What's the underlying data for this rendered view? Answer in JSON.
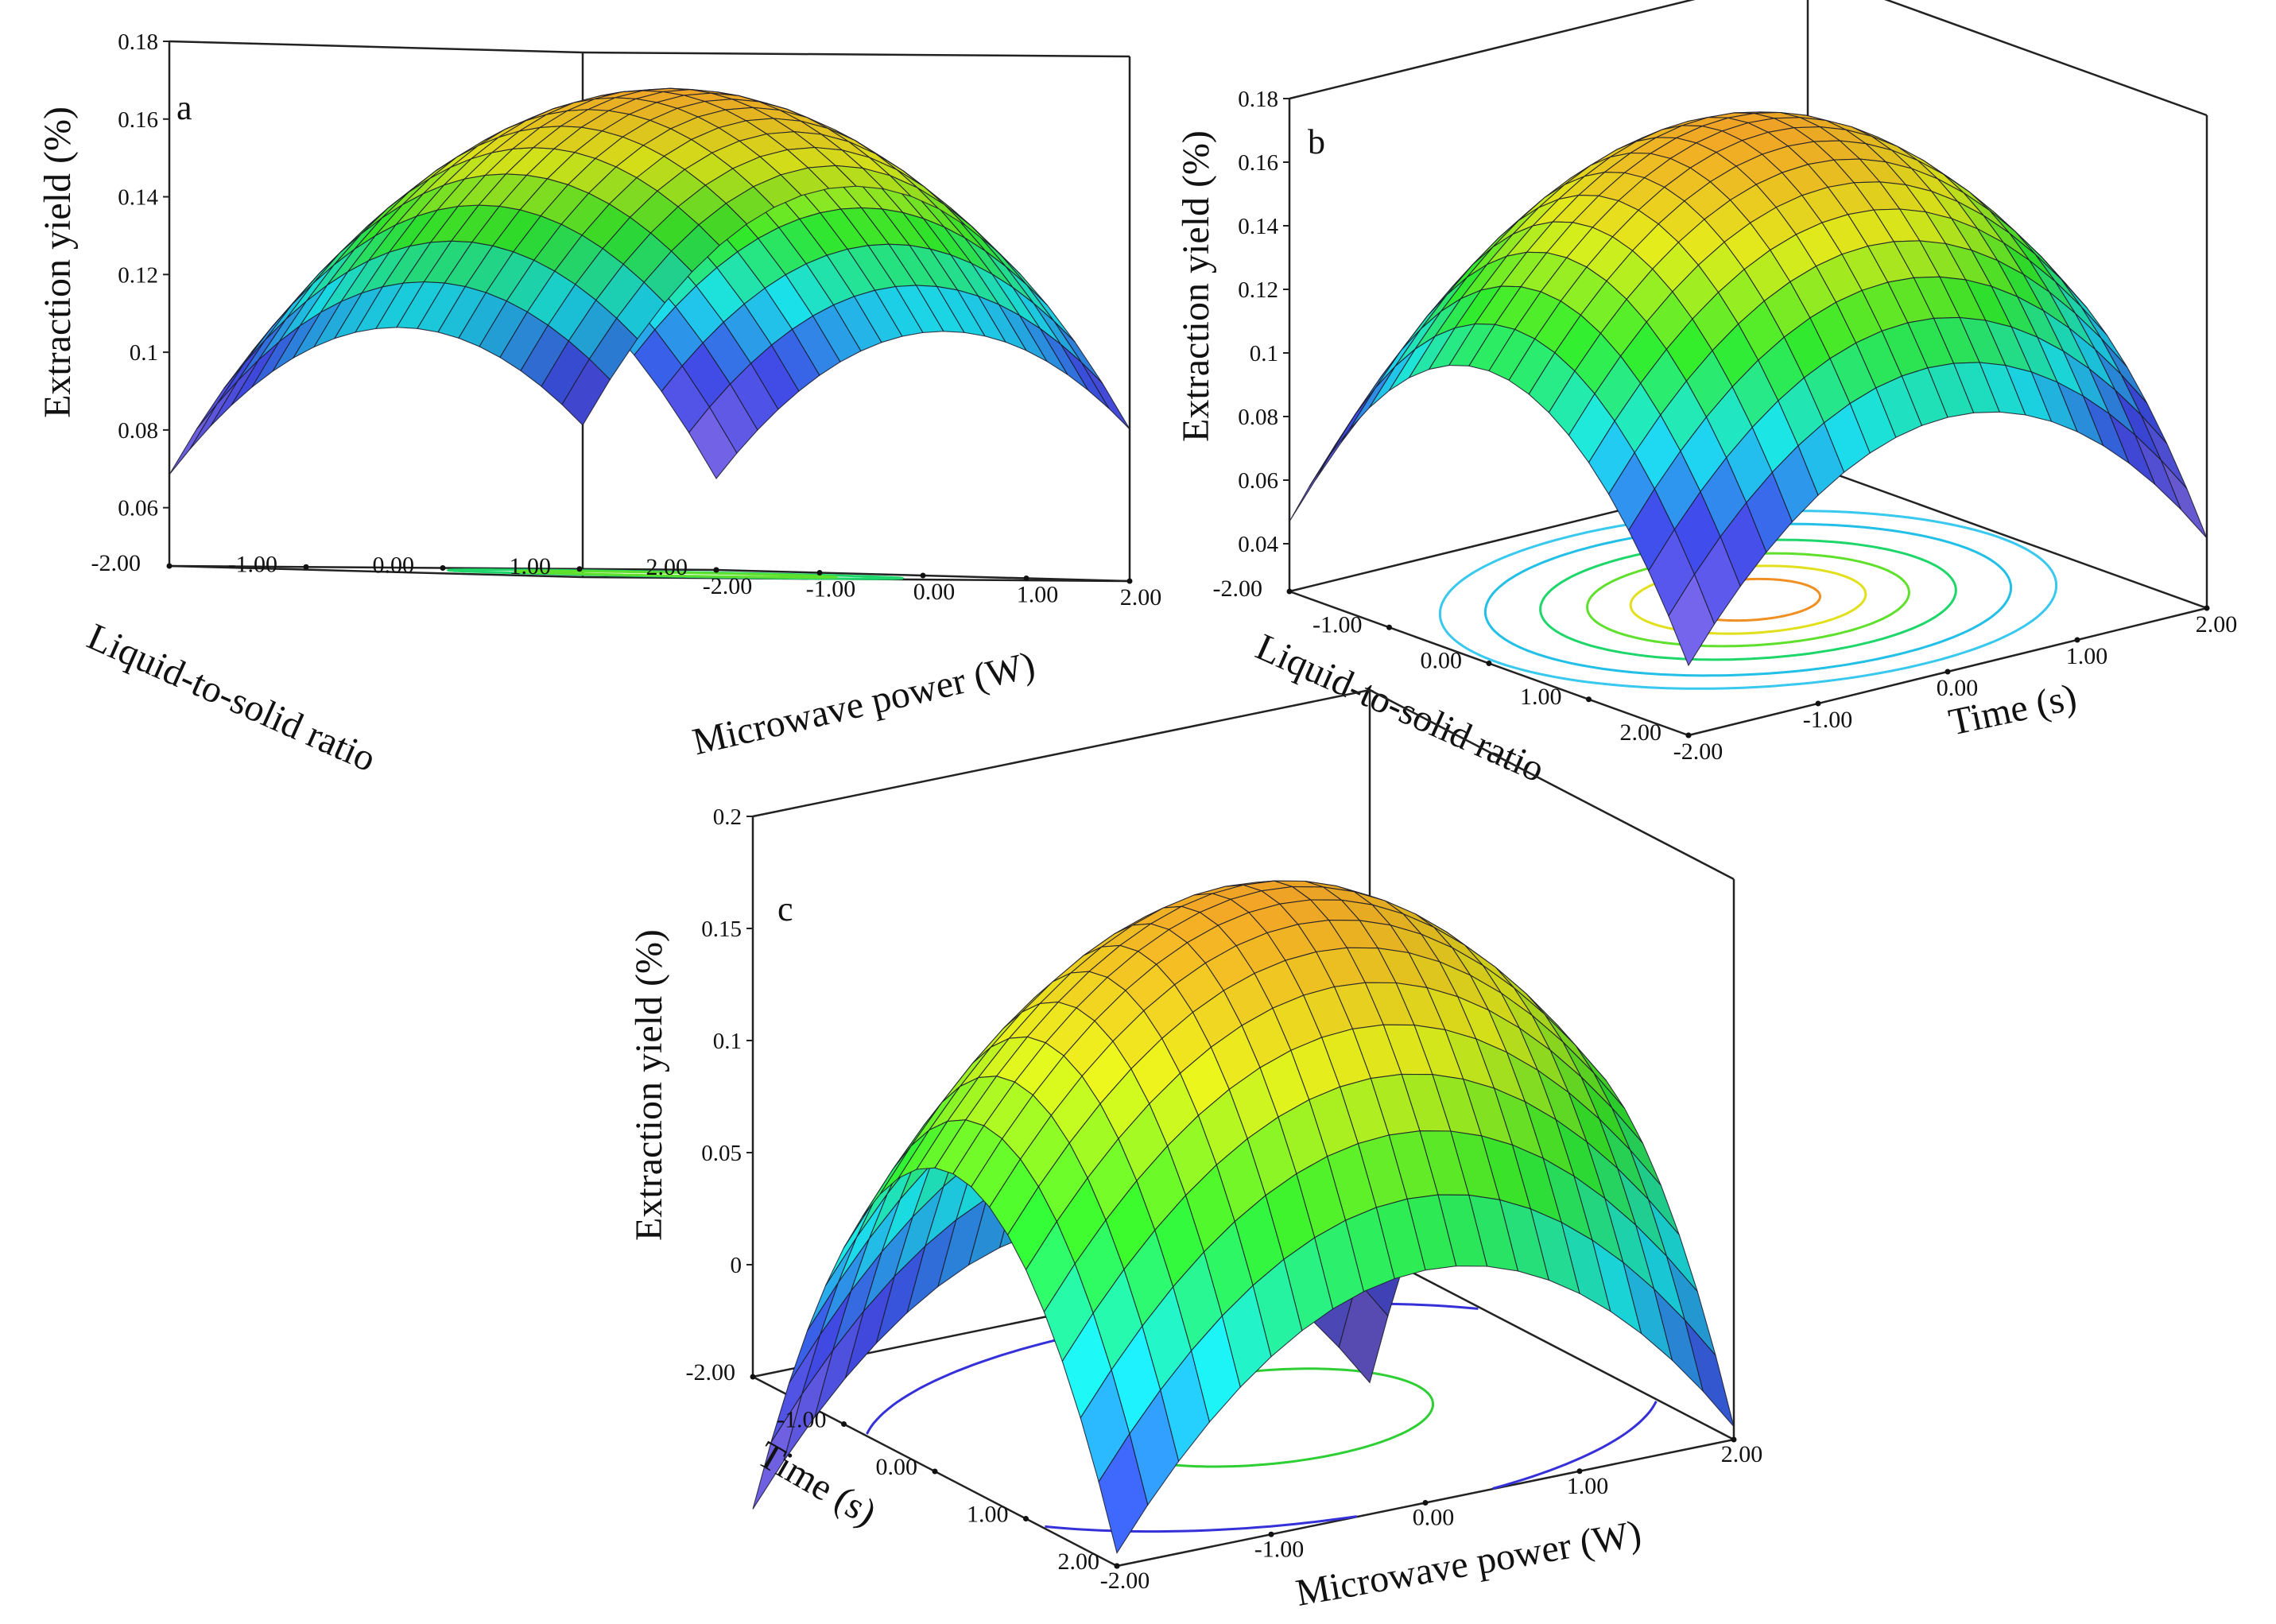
{
  "figure": {
    "description_colors": {
      "low": "#6a5cd8",
      "mid": "#19d7e0",
      "high": "#2fe02a",
      "top": "#f0a226"
    },
    "surface_colors": [
      "#6a5cd8",
      "#3b46da",
      "#19d7e0",
      "#2fe02a",
      "#d9e41a",
      "#f0a226"
    ]
  },
  "chart_data": [
    {
      "panel": "a",
      "type": "surface3d",
      "zlabel": "Extraction yield (%)",
      "xlabel": "Liquid-to-solid ratio",
      "ylabel": "Microwave power (W)",
      "x_ticks": [
        "-2.00",
        "-1.00",
        "0.00",
        "1.00",
        "2.00"
      ],
      "y_ticks": [
        "-2.00",
        "-1.00",
        "0.00",
        "1.00",
        "2.00"
      ],
      "z_ticks": [
        "0.06",
        "0.08",
        "0.1",
        "0.12",
        "0.14",
        "0.16",
        "0.18"
      ],
      "x_range": [
        -2,
        2
      ],
      "y_range": [
        -2,
        2
      ],
      "z_range": [
        0.045,
        0.18
      ],
      "surface": {
        "max": 0.17,
        "cx": 0.0,
        "cy": 0.25,
        "ax": 0.0155,
        "ay": 0.0078
      },
      "contours": [
        {
          "level": 0.15,
          "color": "#1ed66a"
        },
        {
          "level": 0.16,
          "color": "#5fe02c"
        },
        {
          "level": 0.17,
          "color": "#e2e01c"
        }
      ]
    },
    {
      "panel": "b",
      "type": "surface3d",
      "zlabel": "Extraction yield (%)",
      "xlabel": "Liquid-to-solid ratio",
      "ylabel": "Time (s)",
      "x_ticks": [
        "-2.00",
        "-1.00",
        "0.00",
        "1.00",
        "2.00"
      ],
      "y_ticks": [
        "-2.00",
        "-1.00",
        "0.00",
        "1.00",
        "2.00"
      ],
      "z_ticks": [
        "0.04",
        "0.06",
        "0.08",
        "0.1",
        "0.12",
        "0.14",
        "0.16",
        "0.18"
      ],
      "x_range": [
        -2,
        2
      ],
      "y_range": [
        -2,
        2
      ],
      "z_range": [
        0.025,
        0.18
      ],
      "surface": {
        "max": 0.175,
        "cx": 0.0,
        "cy": 0.0,
        "ax": 0.0175,
        "ay": 0.0145
      },
      "contours": [
        {
          "level": 0.12,
          "color": "#39c8ee"
        },
        {
          "level": 0.135,
          "color": "#22bfe6"
        },
        {
          "level": 0.15,
          "color": "#1ed66a"
        },
        {
          "level": 0.16,
          "color": "#5fe02c"
        },
        {
          "level": 0.167,
          "color": "#e2e01c"
        },
        {
          "level": 0.172,
          "color": "#f08f22"
        }
      ]
    },
    {
      "panel": "c",
      "type": "surface3d",
      "zlabel": "Extraction yield (%)",
      "xlabel": "Time (s)",
      "ylabel": "Microwave power (W)",
      "x_ticks": [
        "-2.00",
        "-1.00",
        "0.00",
        "1.00",
        "2.00"
      ],
      "y_ticks": [
        "-2.00",
        "-1.00",
        "0.00",
        "1.00",
        "2.00"
      ],
      "z_ticks": [
        "0",
        "0.05",
        "0.1",
        "0.15",
        "0.2"
      ],
      "x_range": [
        -2,
        2
      ],
      "y_range": [
        -2,
        2
      ],
      "z_range": [
        -0.05,
        0.2
      ],
      "surface": {
        "max": 0.185,
        "cx": 0.2,
        "cy": 0.0,
        "ax": 0.0405,
        "ay": 0.0245
      },
      "contours": [
        {
          "level": 0.05,
          "color": "#3530d8"
        },
        {
          "level": 0.16,
          "color": "#2ecf34"
        }
      ]
    }
  ]
}
